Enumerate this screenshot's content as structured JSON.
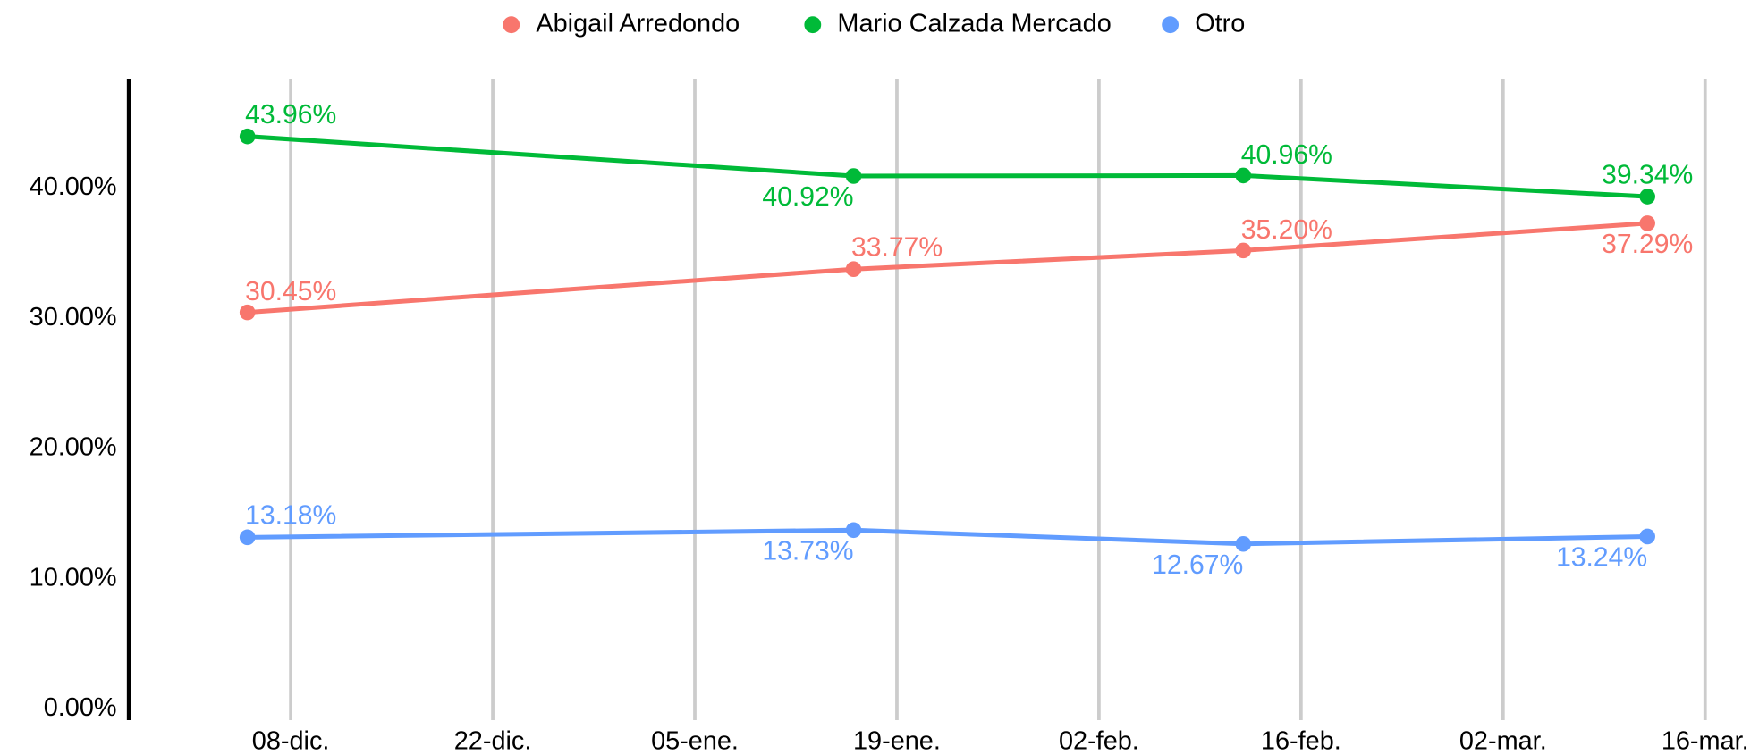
{
  "chart_data": {
    "type": "line",
    "x": [
      "05-dic.",
      "16-ene.",
      "12-feb.",
      "12-mar."
    ],
    "series": [
      {
        "name": "Abigail Arredondo",
        "color": "#f8766d",
        "values": [
          30.45,
          33.77,
          35.2,
          37.29
        ],
        "value_labels": [
          "30.45%",
          "33.77%",
          "35.20%",
          "37.29%"
        ]
      },
      {
        "name": "Mario Calzada Mercado",
        "color": "#00ba38",
        "values": [
          43.96,
          40.92,
          40.96,
          39.34
        ],
        "value_labels": [
          "43.96%",
          "40.92%",
          "40.96%",
          "39.34%"
        ]
      },
      {
        "name": "Otro",
        "color": "#619cff",
        "values": [
          13.18,
          13.73,
          12.67,
          13.24
        ],
        "value_labels": [
          "13.18%",
          "13.73%",
          "12.67%",
          "13.24%"
        ]
      }
    ],
    "xticks": [
      "08-dic.",
      "22-dic.",
      "05-ene.",
      "19-ene.",
      "02-feb.",
      "16-feb.",
      "02-mar.",
      "16-mar."
    ],
    "ylim": [
      0,
      48.4
    ],
    "yticks": [
      {
        "value": 0,
        "label": "0.00%"
      },
      {
        "value": 10,
        "label": "10.00%"
      },
      {
        "value": 20,
        "label": "20.00%"
      },
      {
        "value": 30,
        "label": "30.00%"
      },
      {
        "value": 40,
        "label": "40.00%"
      }
    ],
    "grid": true,
    "legend": "top"
  }
}
